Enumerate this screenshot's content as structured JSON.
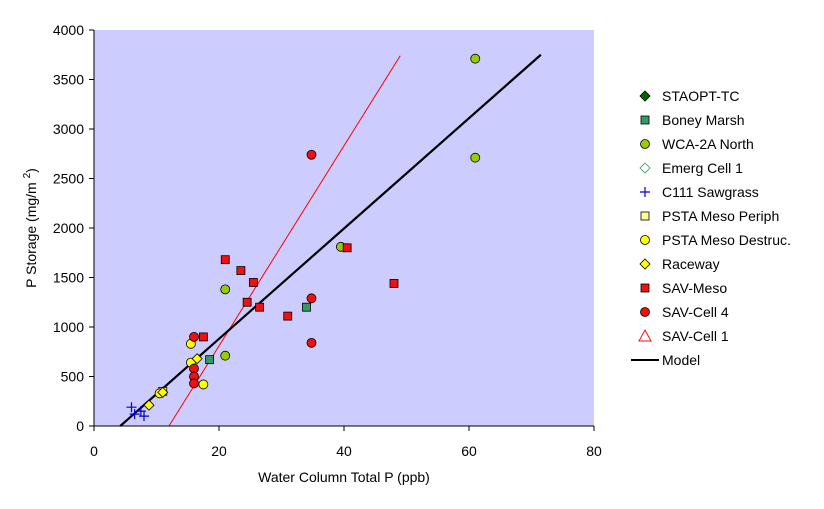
{
  "chart_data": {
    "type": "scatter",
    "xlabel": "Water Column Total P (ppb)",
    "ylabel": "P Storage (mg/m 2)",
    "ylabel_parts": {
      "main": "P Storage (mg/m ",
      "superscript": "2",
      "close": ")"
    },
    "xlim": [
      0,
      80
    ],
    "ylim": [
      0,
      4000
    ],
    "x_ticks": [
      0,
      20,
      40,
      60,
      80
    ],
    "y_ticks": [
      0,
      500,
      1000,
      1500,
      2000,
      2500,
      3000,
      3500,
      4000
    ],
    "plot_background": "#ccccff",
    "grid": false,
    "legend_position": "right",
    "series": [
      {
        "name": "STAOPT-TC",
        "marker": "diamond",
        "color": "#006600",
        "filled": true,
        "points": []
      },
      {
        "name": "Boney Marsh",
        "marker": "square",
        "color": "#339966",
        "filled": true,
        "points": [
          [
            18.5,
            670
          ],
          [
            34,
            1200
          ]
        ]
      },
      {
        "name": "WCA-2A North",
        "marker": "circle",
        "color": "#99cc00",
        "filled": true,
        "points": [
          [
            61,
            3710
          ],
          [
            61,
            2710
          ],
          [
            21,
            1380
          ],
          [
            21,
            710
          ],
          [
            39.5,
            1810
          ]
        ]
      },
      {
        "name": "Emerg Cell 1",
        "marker": "diamond",
        "color": "#339966",
        "filled": false,
        "points": []
      },
      {
        "name": "C111 Sawgrass",
        "marker": "plus",
        "color": "#0000cc",
        "filled": false,
        "points": [
          [
            6,
            190
          ],
          [
            7.5,
            150
          ],
          [
            6.5,
            120
          ],
          [
            8,
            100
          ]
        ]
      },
      {
        "name": "PSTA Meso Periph",
        "marker": "square",
        "color": "#ffff99",
        "filled": true,
        "points": [
          [
            11,
            350
          ]
        ]
      },
      {
        "name": "PSTA Meso Destruc.",
        "marker": "circle",
        "color": "#ffff00",
        "filled": true,
        "points": [
          [
            15.5,
            830
          ],
          [
            15.5,
            640
          ],
          [
            17.5,
            420
          ],
          [
            10.5,
            330
          ]
        ]
      },
      {
        "name": "Raceway",
        "marker": "diamond",
        "color": "#ffff00",
        "filled": true,
        "points": [
          [
            16.5,
            680
          ],
          [
            8.8,
            210
          ],
          [
            11,
            340
          ]
        ]
      },
      {
        "name": "SAV-Meso",
        "marker": "square",
        "color": "#ee1111",
        "filled": true,
        "points": [
          [
            21,
            1680
          ],
          [
            23.5,
            1570
          ],
          [
            25.5,
            1450
          ],
          [
            24.5,
            1250
          ],
          [
            26.5,
            1200
          ],
          [
            31,
            1110
          ],
          [
            17.5,
            900
          ],
          [
            40.5,
            1800
          ],
          [
            48,
            1440
          ]
        ]
      },
      {
        "name": "SAV-Cell 4",
        "marker": "circle",
        "color": "#ee1111",
        "filled": true,
        "points": [
          [
            34.8,
            2740
          ],
          [
            34.8,
            1290
          ],
          [
            34.8,
            840
          ],
          [
            16,
            900
          ],
          [
            16,
            580
          ],
          [
            16,
            500
          ],
          [
            16,
            430
          ]
        ]
      },
      {
        "name": "SAV-Cell 1",
        "marker": "triangle",
        "color": "#ee1111",
        "filled": false,
        "points": []
      },
      {
        "name": "Model",
        "marker": "line",
        "color": "#000000",
        "filled": false,
        "points": [
          [
            4.2,
            0
          ],
          [
            71.5,
            3750
          ]
        ]
      }
    ],
    "trend_lines": [
      {
        "color": "#ff0000",
        "points": [
          [
            12,
            0
          ],
          [
            49,
            3740
          ]
        ]
      }
    ]
  }
}
